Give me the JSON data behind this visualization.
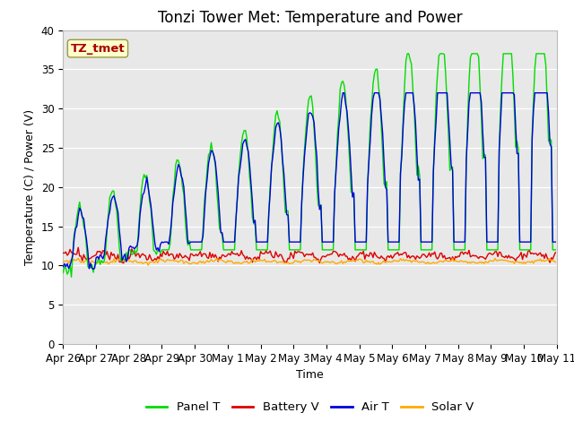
{
  "title": "Tonzi Tower Met: Temperature and Power",
  "xlabel": "Time",
  "ylabel": "Temperature (C) / Power (V)",
  "ylim": [
    0,
    40
  ],
  "yticks": [
    0,
    5,
    10,
    15,
    20,
    25,
    30,
    35,
    40
  ],
  "xtick_labels": [
    "Apr 26",
    "Apr 27",
    "Apr 28",
    "Apr 29",
    "Apr 30",
    "May 1",
    "May 2",
    "May 3",
    "May 4",
    "May 5",
    "May 6",
    "May 7",
    "May 8",
    "May 9",
    "May 10",
    "May 11"
  ],
  "legend_labels": [
    "Panel T",
    "Battery V",
    "Air T",
    "Solar V"
  ],
  "legend_colors": [
    "#00dd00",
    "#dd0000",
    "#0000dd",
    "#ffaa00"
  ],
  "annotation_text": "TZ_tmet",
  "annotation_color": "#aa0000",
  "annotation_bg": "#ffffcc",
  "annotation_edge": "#999944",
  "bg_color": "#e8e8e8",
  "fig_bg": "#ffffff",
  "title_fontsize": 12,
  "label_fontsize": 9,
  "tick_fontsize": 8.5,
  "legend_fontsize": 9.5,
  "linewidth": 1.0
}
